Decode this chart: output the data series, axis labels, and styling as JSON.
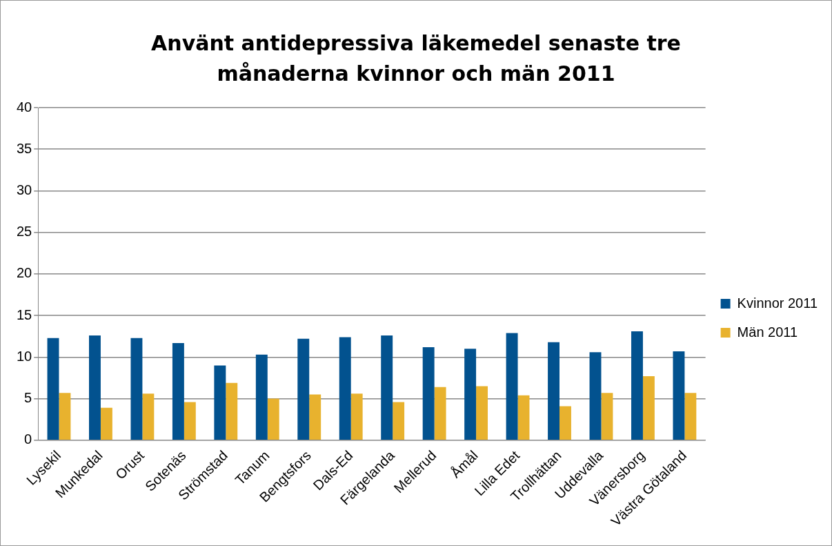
{
  "chart_data": {
    "type": "bar",
    "title": "Använt antidepressiva läkemedel senaste tre månaderna kvinnor och män 2011",
    "categories": [
      "Lysekil",
      "Munkedal",
      "Orust",
      "Sotenäs",
      "Strömstad",
      "Tanum",
      "Bengtsfors",
      "Dals-Ed",
      "Färgelanda",
      "Mellerud",
      "Åmål",
      "Lilla Edet",
      "Trollhättan",
      "Uddevalla",
      "Vänersborg",
      "Västra Götaland"
    ],
    "series": [
      {
        "name": "Kvinnor 2011",
        "color": "#02528f",
        "values": [
          12.3,
          12.6,
          12.3,
          11.7,
          9.0,
          10.3,
          12.2,
          12.4,
          12.6,
          11.2,
          11.0,
          12.9,
          11.8,
          10.6,
          13.1,
          10.7
        ]
      },
      {
        "name": "Män 2011",
        "color": "#e8b22e",
        "values": [
          5.7,
          3.9,
          5.6,
          4.6,
          6.9,
          5.0,
          5.5,
          5.6,
          4.6,
          6.4,
          6.5,
          5.4,
          4.1,
          5.7,
          7.7,
          5.7
        ]
      }
    ],
    "ylim": [
      0,
      40
    ],
    "yticks": [
      0,
      5,
      10,
      15,
      20,
      25,
      30,
      35,
      40
    ],
    "grid": "y",
    "legend": "right"
  }
}
